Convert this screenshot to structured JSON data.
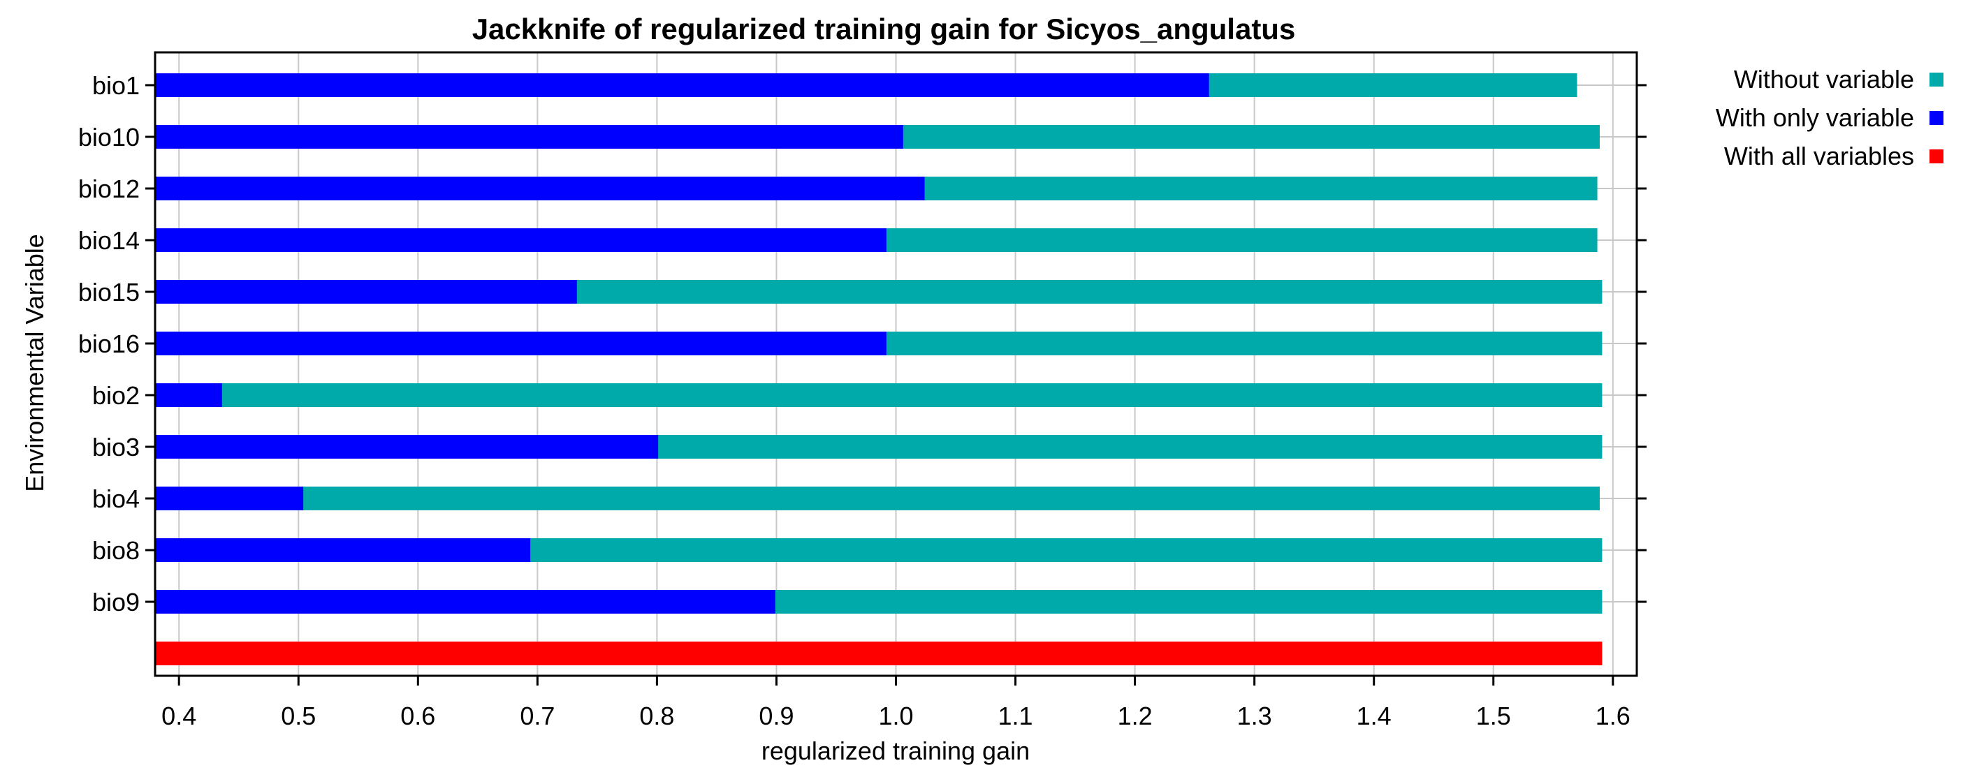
{
  "chart_data": {
    "type": "bar",
    "orientation": "horizontal",
    "title": "Jackknife of regularized training gain for Sicyos_angulatus",
    "xlabel": "regularized training gain",
    "ylabel": "Environmental Variable",
    "xlim": [
      0.38,
      1.62
    ],
    "xticks": [
      "0.4",
      "0.5",
      "0.6",
      "0.7",
      "0.8",
      "0.9",
      "1.0",
      "1.1",
      "1.2",
      "1.3",
      "1.4",
      "1.5",
      "1.6"
    ],
    "grid": true,
    "legend_position": "right",
    "categories": [
      "bio1",
      "bio10",
      "bio12",
      "bio14",
      "bio15",
      "bio16",
      "bio2",
      "bio3",
      "bio4",
      "bio8",
      "bio9"
    ],
    "series": [
      {
        "name": "Without variable",
        "color": "#00AAAA",
        "values": [
          1.57,
          1.589,
          1.587,
          1.587,
          1.591,
          1.591,
          1.591,
          1.591,
          1.589,
          1.591,
          1.591
        ]
      },
      {
        "name": "With only variable",
        "color": "#0000FF",
        "values": [
          1.262,
          1.006,
          1.024,
          0.992,
          0.733,
          0.992,
          0.436,
          0.801,
          0.504,
          0.694,
          0.899
        ]
      },
      {
        "name": "With all variables",
        "color": "#FF0000",
        "value": 1.591
      }
    ]
  }
}
